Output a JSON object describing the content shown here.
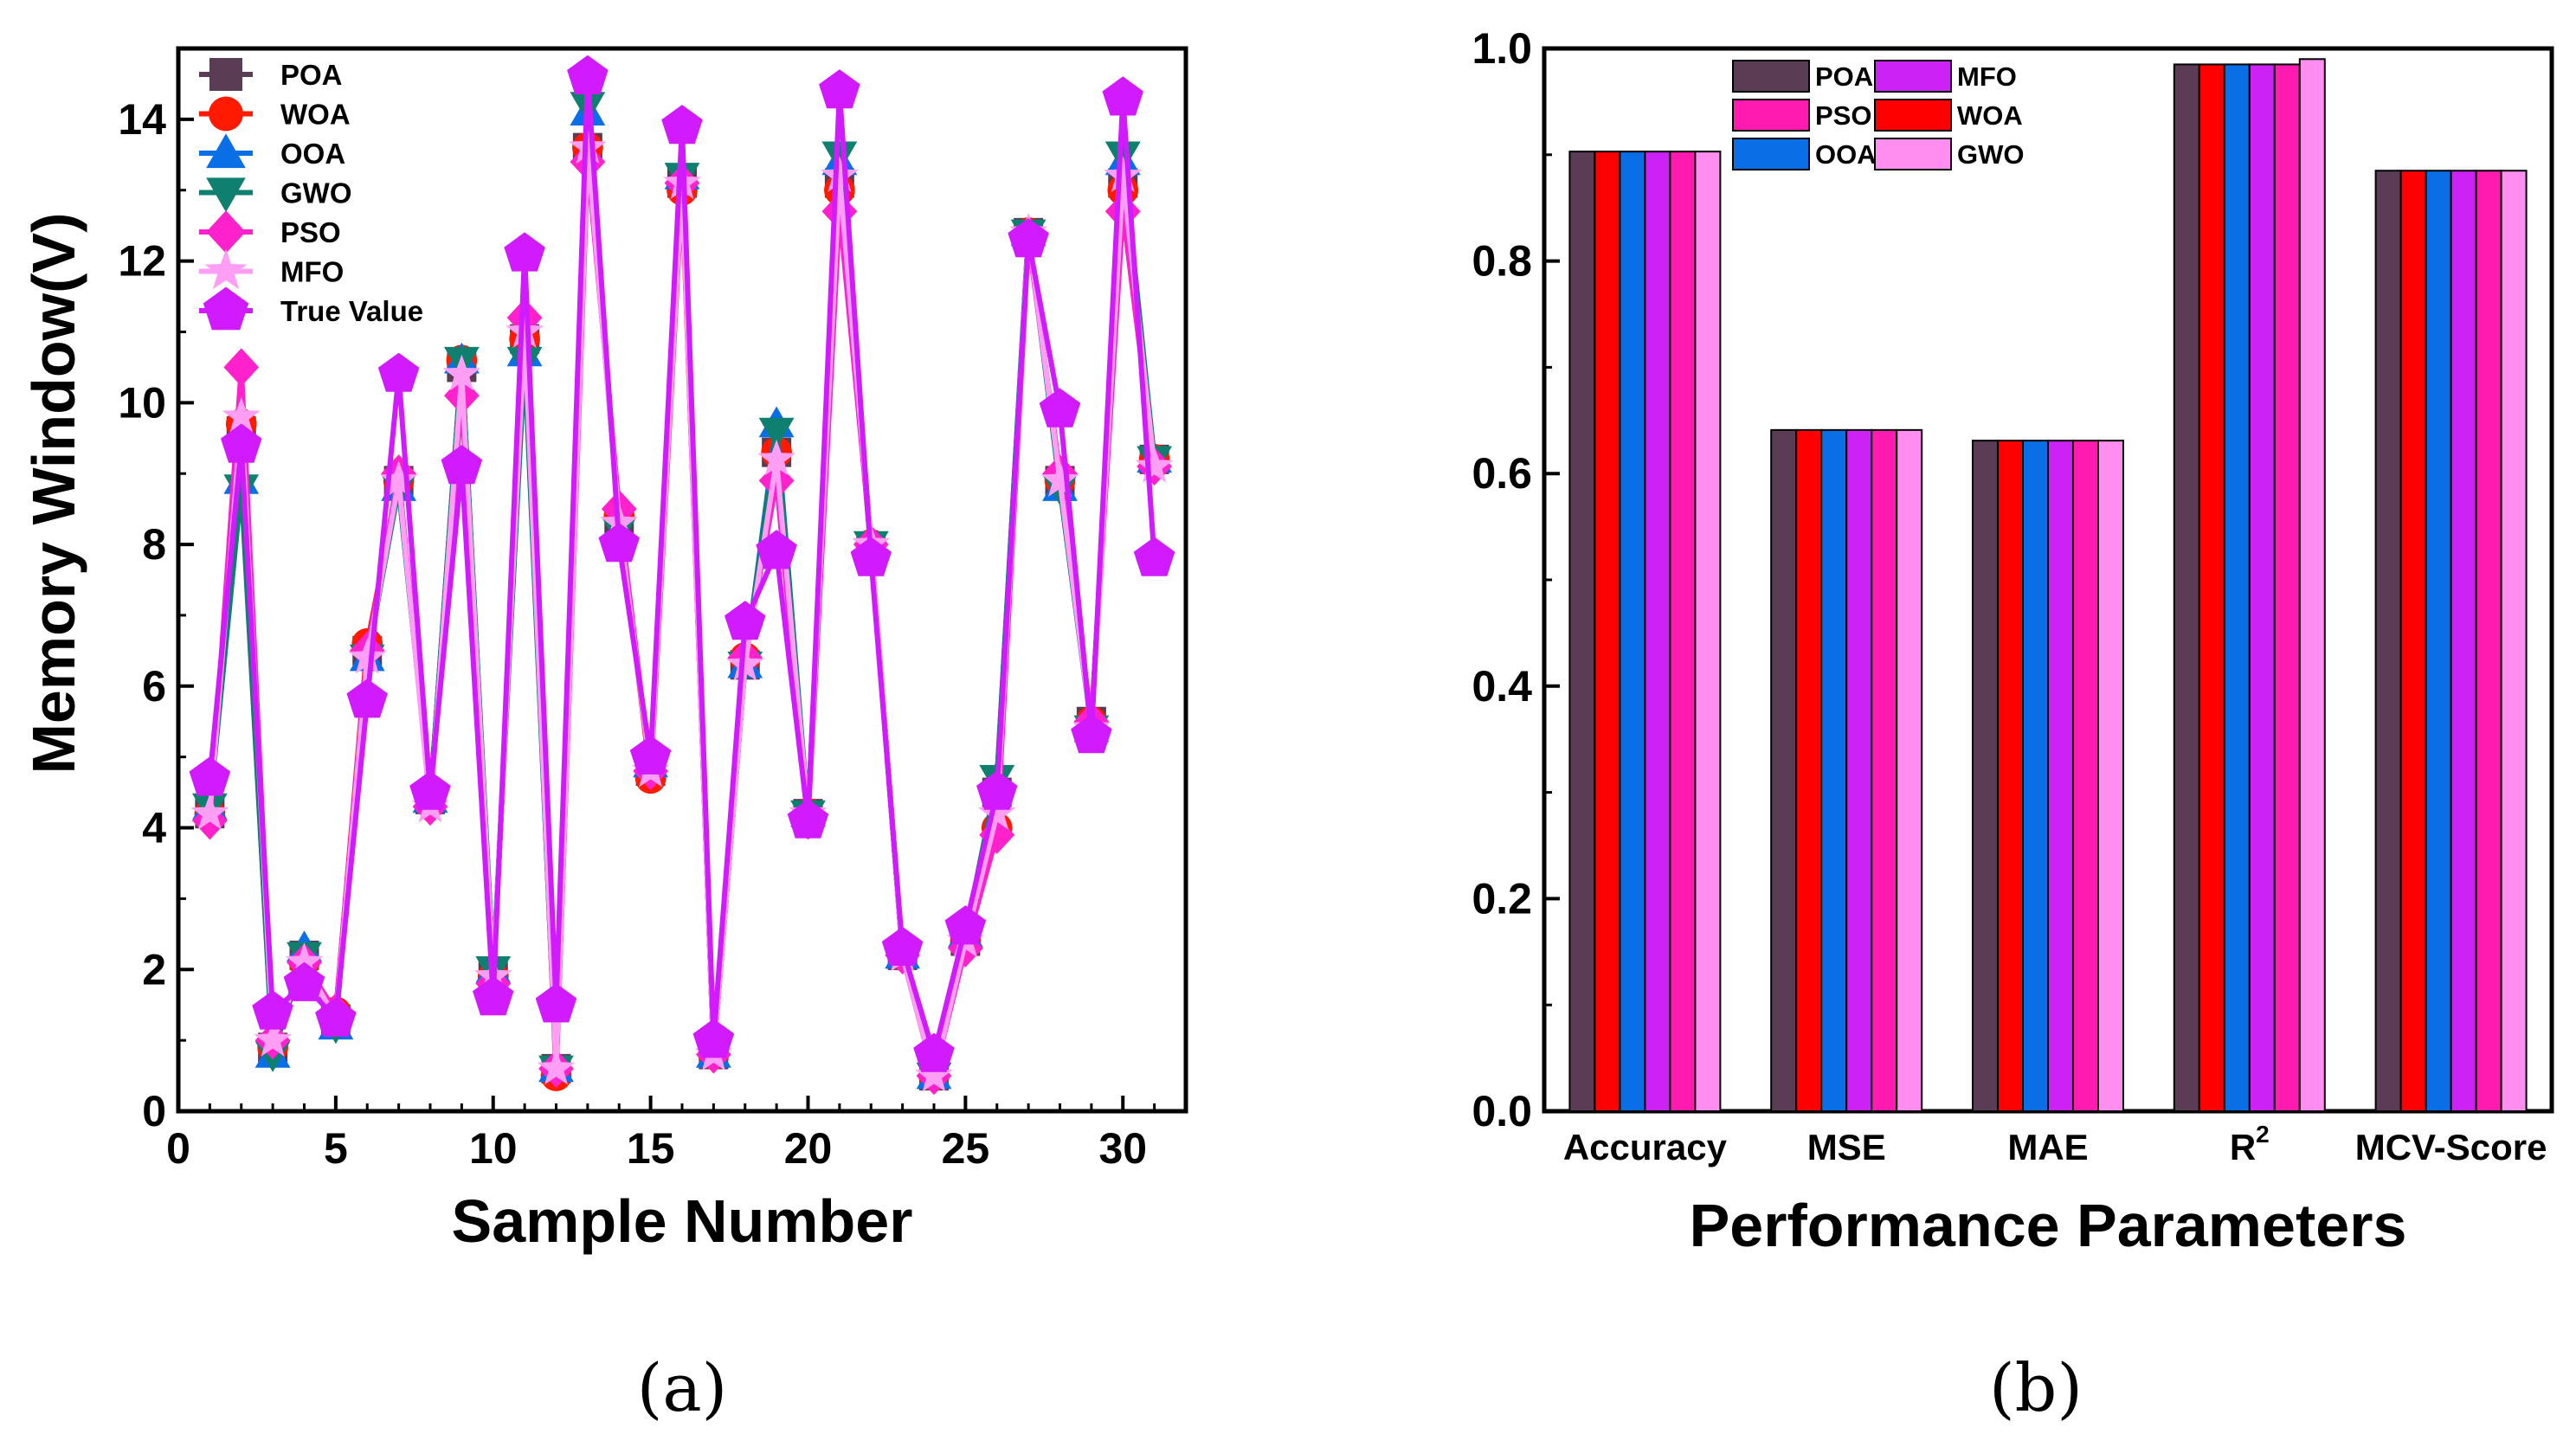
{
  "chart_data": [
    {
      "type": "line",
      "panel_label": "(a)",
      "title": "",
      "xlabel": "Sample Number",
      "ylabel": "Memory Window(V)",
      "xlim": [
        0,
        32
      ],
      "ylim": [
        0,
        15
      ],
      "xticks": [
        0,
        5,
        10,
        15,
        20,
        25,
        30
      ],
      "yticks": [
        0,
        2,
        4,
        6,
        8,
        10,
        12,
        14
      ],
      "legend_position": "top-left",
      "x": [
        1,
        2,
        3,
        4,
        5,
        6,
        7,
        8,
        9,
        10,
        11,
        12,
        13,
        14,
        15,
        16,
        17,
        18,
        19,
        20,
        21,
        22,
        23,
        24,
        25,
        26,
        27,
        28,
        29,
        30,
        31
      ],
      "series": [
        {
          "name": "POA",
          "color": "#5a3d55",
          "marker": "square",
          "values": [
            4.2,
            9.6,
            0.9,
            2.2,
            1.3,
            6.5,
            8.9,
            4.4,
            10.5,
            1.9,
            10.9,
            0.6,
            13.6,
            8.3,
            4.8,
            13.1,
            0.8,
            6.3,
            9.3,
            4.2,
            13.1,
            7.9,
            2.2,
            0.5,
            2.4,
            4.5,
            12.4,
            8.9,
            5.5,
            13.1,
            9.2
          ]
        },
        {
          "name": "WOA",
          "color": "#ff1a00",
          "marker": "circle",
          "values": [
            4.2,
            9.7,
            0.9,
            2.1,
            1.4,
            6.6,
            8.9,
            4.4,
            10.6,
            1.9,
            10.9,
            0.5,
            13.6,
            8.4,
            4.7,
            13.0,
            0.8,
            6.4,
            9.3,
            4.2,
            13.0,
            8.0,
            2.2,
            0.5,
            2.4,
            4.0,
            12.4,
            8.9,
            5.5,
            13.0,
            9.2
          ]
        },
        {
          "name": "OOA",
          "color": "#0a6ee6",
          "marker": "triangle-up",
          "values": [
            4.3,
            8.9,
            0.8,
            2.3,
            1.2,
            6.4,
            8.8,
            4.4,
            10.6,
            2.0,
            10.7,
            0.6,
            14.1,
            8.2,
            4.9,
            13.2,
            0.8,
            6.3,
            9.7,
            4.2,
            13.4,
            8.0,
            2.2,
            0.5,
            2.5,
            4.7,
            12.4,
            8.8,
            5.4,
            13.4,
            9.2
          ]
        },
        {
          "name": "GWO",
          "color": "#0f8070",
          "marker": "triangle-down",
          "values": [
            4.3,
            8.8,
            0.8,
            2.2,
            1.2,
            6.4,
            8.8,
            4.4,
            10.6,
            2.0,
            10.6,
            0.6,
            14.2,
            8.2,
            4.9,
            13.2,
            0.8,
            6.3,
            9.6,
            4.2,
            13.5,
            8.0,
            2.2,
            0.5,
            2.5,
            4.7,
            12.4,
            8.8,
            5.4,
            13.5,
            9.2
          ]
        },
        {
          "name": "PSO",
          "color": "#ff22cc",
          "marker": "diamond",
          "values": [
            4.1,
            10.5,
            1.0,
            2.1,
            1.4,
            6.5,
            9.0,
            4.3,
            10.1,
            1.8,
            11.2,
            0.6,
            13.4,
            8.5,
            4.8,
            13.1,
            0.8,
            6.4,
            8.9,
            4.1,
            12.7,
            8.0,
            2.2,
            0.5,
            2.3,
            3.9,
            12.3,
            9.0,
            5.5,
            12.7,
            9.1
          ]
        },
        {
          "name": "MFO",
          "color": "#ff9ef5",
          "marker": "star",
          "values": [
            4.2,
            9.8,
            1.0,
            2.1,
            1.3,
            6.4,
            8.9,
            4.3,
            10.4,
            1.9,
            11.0,
            0.6,
            13.6,
            8.3,
            4.8,
            13.1,
            0.8,
            6.3,
            9.2,
            4.2,
            13.2,
            8.0,
            2.2,
            0.5,
            2.4,
            4.2,
            12.4,
            8.9,
            5.4,
            13.2,
            9.1
          ]
        },
        {
          "name": "True Value",
          "color": "#d21aff",
          "marker": "pentagon",
          "values": [
            4.7,
            9.4,
            1.4,
            1.8,
            1.3,
            5.8,
            10.4,
            4.5,
            9.1,
            1.6,
            12.1,
            1.5,
            14.6,
            8.0,
            5.0,
            13.9,
            1.0,
            6.9,
            7.9,
            4.1,
            14.4,
            7.8,
            2.3,
            0.8,
            2.6,
            4.5,
            12.3,
            9.9,
            5.3,
            14.3,
            7.8
          ]
        }
      ]
    },
    {
      "type": "bar",
      "panel_label": "(b)",
      "title": "",
      "xlabel": "Performance Parameters",
      "ylabel": "",
      "ylim": [
        0,
        1.0
      ],
      "yticks": [
        "0.0",
        "0.2",
        "0.4",
        "0.6",
        "0.8",
        "1.0"
      ],
      "legend_position": "top-left",
      "categories": [
        "Accuracy",
        "MSE",
        "MAE",
        "R",
        "MCV-Score"
      ],
      "category_superscripts": [
        "",
        "",
        "",
        "2",
        ""
      ],
      "series": [
        {
          "name": "POA",
          "color": "#5a3d55",
          "values": [
            0.903,
            0.641,
            0.631,
            0.985,
            0.885
          ]
        },
        {
          "name": "WOA",
          "color": "#ff0000",
          "values": [
            0.903,
            0.641,
            0.631,
            0.985,
            0.885
          ]
        },
        {
          "name": "OOA",
          "color": "#0a6ee6",
          "values": [
            0.903,
            0.641,
            0.631,
            0.985,
            0.885
          ]
        },
        {
          "name": "MFO",
          "color": "#cc22f5",
          "values": [
            0.903,
            0.641,
            0.631,
            0.985,
            0.885
          ]
        },
        {
          "name": "PSO",
          "color": "#ff1ab0",
          "values": [
            0.903,
            0.641,
            0.631,
            0.985,
            0.885
          ]
        },
        {
          "name": "GWO",
          "color": "#ff8ef0",
          "values": [
            0.903,
            0.641,
            0.631,
            0.99,
            0.885
          ]
        }
      ],
      "legend_order": [
        "POA",
        "MFO",
        "PSO",
        "WOA",
        "OOA",
        "GWO"
      ]
    }
  ]
}
